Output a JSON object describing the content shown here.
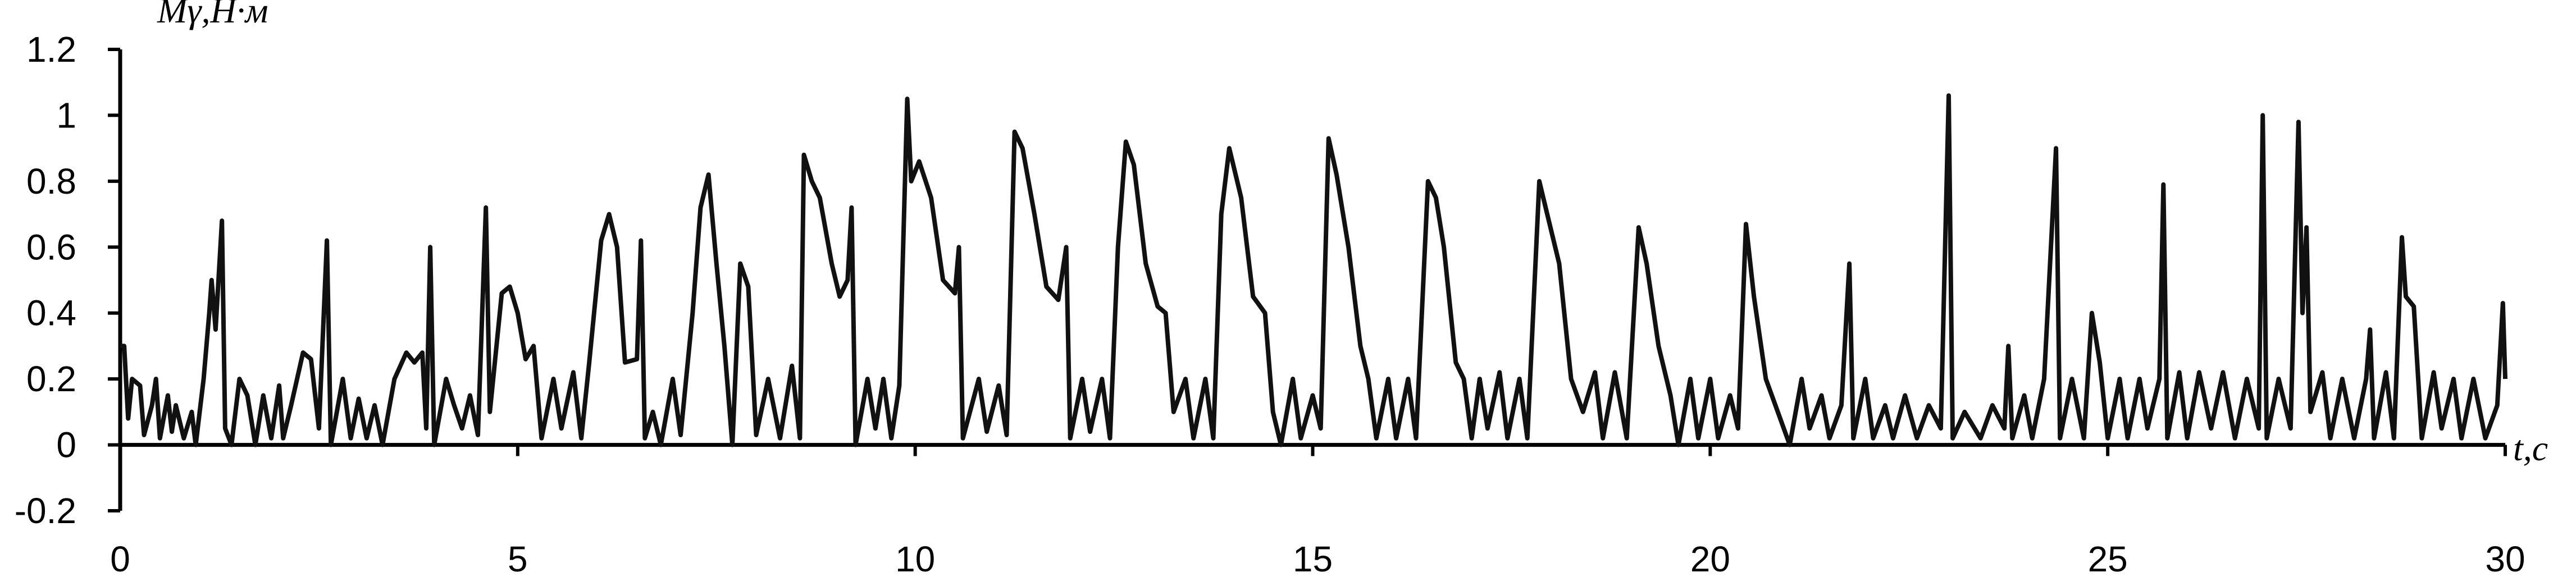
{
  "chart_data": {
    "type": "line",
    "y_label": "Mγ,Н·м",
    "x_label": "t,с",
    "xlim": [
      0,
      30
    ],
    "ylim": [
      -0.2,
      1.2
    ],
    "xticks": [
      0,
      5,
      10,
      15,
      20,
      25,
      30
    ],
    "yticks": [
      -0.2,
      0,
      0.2,
      0.4,
      0.6,
      0.8,
      1,
      1.2
    ],
    "x": [
      0,
      0.05,
      0.1,
      0.15,
      0.25,
      0.3,
      0.4,
      0.45,
      0.5,
      0.6,
      0.65,
      0.7,
      0.8,
      0.9,
      0.95,
      1.05,
      1.12,
      1.15,
      1.2,
      1.28,
      1.32,
      1.4,
      1.5,
      1.6,
      1.7,
      1.8,
      1.9,
      2.0,
      2.05,
      2.15,
      2.3,
      2.4,
      2.5,
      2.6,
      2.65,
      2.8,
      2.9,
      3.0,
      3.1,
      3.2,
      3.3,
      3.45,
      3.6,
      3.7,
      3.8,
      3.85,
      3.9,
      3.95,
      4.1,
      4.2,
      4.3,
      4.4,
      4.5,
      4.6,
      4.65,
      4.8,
      4.9,
      5.0,
      5.1,
      5.2,
      5.3,
      5.45,
      5.55,
      5.7,
      5.8,
      5.9,
      6.05,
      6.15,
      6.25,
      6.35,
      6.5,
      6.55,
      6.6,
      6.7,
      6.8,
      6.95,
      7.05,
      7.2,
      7.3,
      7.4,
      7.5,
      7.6,
      7.7,
      7.8,
      7.9,
      8.0,
      8.15,
      8.3,
      8.45,
      8.55,
      8.6,
      8.7,
      8.8,
      8.95,
      9.05,
      9.15,
      9.2,
      9.25,
      9.4,
      9.5,
      9.6,
      9.7,
      9.8,
      9.9,
      9.95,
      10.05,
      10.2,
      10.35,
      10.5,
      10.55,
      10.6,
      10.8,
      10.9,
      11.05,
      11.15,
      11.25,
      11.35,
      11.5,
      11.65,
      11.8,
      11.9,
      11.95,
      12.1,
      12.2,
      12.35,
      12.45,
      12.55,
      12.65,
      12.75,
      12.9,
      13.05,
      13.15,
      13.25,
      13.4,
      13.5,
      13.65,
      13.75,
      13.85,
      13.95,
      14.1,
      14.25,
      14.4,
      14.5,
      14.6,
      14.75,
      14.85,
      15.0,
      15.1,
      15.2,
      15.3,
      15.45,
      15.6,
      15.7,
      15.8,
      15.95,
      16.05,
      16.2,
      16.3,
      16.45,
      16.55,
      16.65,
      16.8,
      16.9,
      17.0,
      17.1,
      17.2,
      17.35,
      17.45,
      17.6,
      17.7,
      17.85,
      17.95,
      18.1,
      18.25,
      18.4,
      18.55,
      18.65,
      18.8,
      18.95,
      19.1,
      19.2,
      19.35,
      19.5,
      19.6,
      19.75,
      19.85,
      20.0,
      20.1,
      20.25,
      20.35,
      20.45,
      20.55,
      20.7,
      20.85,
      21.0,
      21.15,
      21.25,
      21.4,
      21.5,
      21.65,
      21.75,
      21.8,
      21.95,
      22.05,
      22.2,
      22.3,
      22.45,
      22.6,
      22.75,
      22.9,
      23.0,
      23.05,
      23.2,
      23.4,
      23.55,
      23.7,
      23.75,
      23.8,
      23.95,
      24.05,
      24.2,
      24.35,
      24.4,
      24.55,
      24.7,
      24.8,
      24.9,
      25.0,
      25.15,
      25.25,
      25.4,
      25.5,
      25.65,
      25.7,
      25.75,
      25.9,
      26.0,
      26.15,
      26.3,
      26.45,
      26.6,
      26.75,
      26.9,
      26.95,
      27.0,
      27.15,
      27.3,
      27.4,
      27.45,
      27.5,
      27.55,
      27.7,
      27.8,
      27.95,
      28.1,
      28.25,
      28.3,
      28.35,
      28.5,
      28.6,
      28.7,
      28.75,
      28.85,
      28.95,
      29.1,
      29.2,
      29.35,
      29.45,
      29.6,
      29.75,
      29.9,
      29.97,
      30.0
    ],
    "series": [
      {
        "color": "#111111",
        "values": [
          0.3,
          0.3,
          0.08,
          0.2,
          0.18,
          0.03,
          0.12,
          0.2,
          0.02,
          0.15,
          0.04,
          0.12,
          0.02,
          0.1,
          0.0,
          0.2,
          0.4,
          0.5,
          0.35,
          0.68,
          0.05,
          0.0,
          0.2,
          0.15,
          0.0,
          0.15,
          0.02,
          0.18,
          0.02,
          0.12,
          0.28,
          0.26,
          0.05,
          0.62,
          0.0,
          0.2,
          0.02,
          0.14,
          0.02,
          0.12,
          0.0,
          0.2,
          0.28,
          0.25,
          0.28,
          0.05,
          0.6,
          0.0,
          0.2,
          0.12,
          0.05,
          0.15,
          0.03,
          0.72,
          0.1,
          0.46,
          0.48,
          0.4,
          0.26,
          0.3,
          0.02,
          0.2,
          0.05,
          0.22,
          0.02,
          0.25,
          0.62,
          0.7,
          0.6,
          0.25,
          0.26,
          0.62,
          0.02,
          0.1,
          0.0,
          0.2,
          0.03,
          0.4,
          0.72,
          0.82,
          0.55,
          0.3,
          0.0,
          0.55,
          0.48,
          0.03,
          0.2,
          0.02,
          0.24,
          0.02,
          0.88,
          0.8,
          0.75,
          0.55,
          0.45,
          0.5,
          0.72,
          0.0,
          0.2,
          0.05,
          0.2,
          0.02,
          0.18,
          1.05,
          0.8,
          0.86,
          0.75,
          0.5,
          0.46,
          0.6,
          0.02,
          0.2,
          0.04,
          0.18,
          0.03,
          0.95,
          0.9,
          0.7,
          0.48,
          0.44,
          0.6,
          0.02,
          0.2,
          0.04,
          0.2,
          0.02,
          0.6,
          0.92,
          0.85,
          0.55,
          0.42,
          0.4,
          0.1,
          0.2,
          0.02,
          0.2,
          0.02,
          0.7,
          0.9,
          0.75,
          0.45,
          0.4,
          0.1,
          0.0,
          0.2,
          0.02,
          0.15,
          0.05,
          0.93,
          0.82,
          0.6,
          0.3,
          0.2,
          0.02,
          0.2,
          0.02,
          0.2,
          0.02,
          0.8,
          0.75,
          0.6,
          0.25,
          0.2,
          0.02,
          0.2,
          0.05,
          0.22,
          0.02,
          0.2,
          0.02,
          0.8,
          0.7,
          0.55,
          0.2,
          0.1,
          0.22,
          0.02,
          0.22,
          0.02,
          0.66,
          0.55,
          0.3,
          0.15,
          0.0,
          0.2,
          0.02,
          0.2,
          0.02,
          0.15,
          0.05,
          0.67,
          0.45,
          0.2,
          0.1,
          0.0,
          0.2,
          0.05,
          0.15,
          0.02,
          0.12,
          0.55,
          0.02,
          0.2,
          0.02,
          0.12,
          0.02,
          0.15,
          0.02,
          0.12,
          0.05,
          1.06,
          0.02,
          0.1,
          0.02,
          0.12,
          0.05,
          0.3,
          0.02,
          0.15,
          0.02,
          0.2,
          0.9,
          0.02,
          0.2,
          0.02,
          0.4,
          0.25,
          0.02,
          0.2,
          0.02,
          0.2,
          0.05,
          0.2,
          0.79,
          0.02,
          0.22,
          0.02,
          0.22,
          0.05,
          0.22,
          0.02,
          0.2,
          0.05,
          1.0,
          0.02,
          0.2,
          0.05,
          0.98,
          0.4,
          0.66,
          0.1,
          0.22,
          0.02,
          0.2,
          0.02,
          0.2,
          0.35,
          0.02,
          0.22,
          0.02,
          0.63,
          0.45,
          0.42,
          0.02,
          0.22,
          0.05,
          0.2,
          0.02,
          0.2,
          0.02,
          0.12,
          0.43,
          0.2
        ]
      }
    ]
  }
}
